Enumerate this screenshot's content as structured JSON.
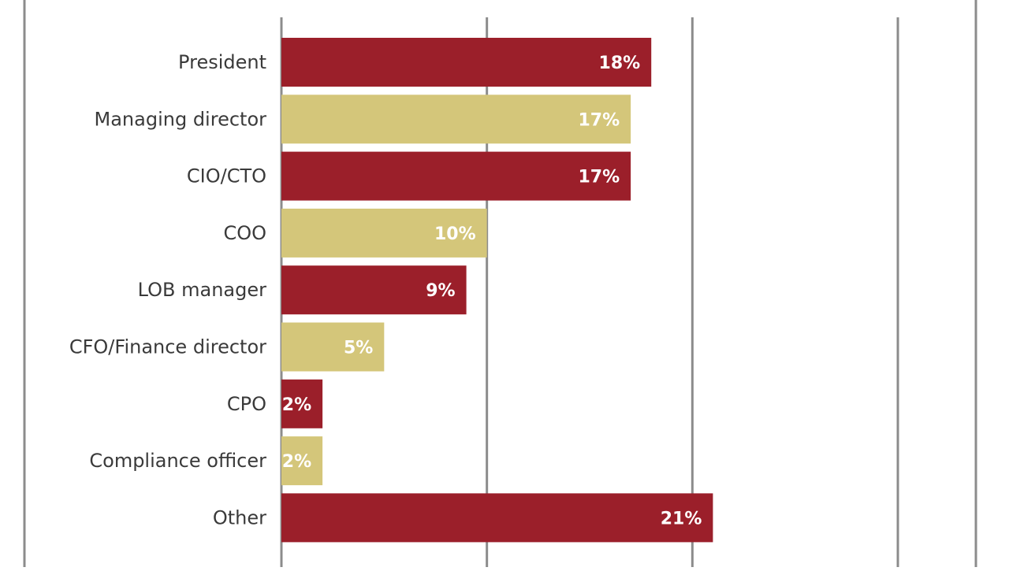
{
  "chart_data": {
    "type": "bar",
    "orientation": "horizontal",
    "categories": [
      "President",
      "Managing director",
      "CIO/CTO",
      "COO",
      "LOB manager",
      "CFO/Finance director",
      "CPO",
      "Compliance officer",
      "Other"
    ],
    "values": [
      18,
      17,
      17,
      10,
      9,
      5,
      2,
      2,
      21
    ],
    "value_labels": [
      "18%",
      "17%",
      "17%",
      "10%",
      "9%",
      "5%",
      "2%",
      "2%",
      "21%"
    ],
    "xlim": [
      0,
      30
    ],
    "grid": true,
    "gridlines_at": [
      0,
      10,
      20,
      30
    ],
    "colors": [
      "#9b1f2a",
      "#d4c67a",
      "#9b1f2a",
      "#d4c67a",
      "#9b1f2a",
      "#d4c67a",
      "#9b1f2a",
      "#d4c67a",
      "#9b1f2a"
    ],
    "grid_color": "#8c8c8c"
  }
}
